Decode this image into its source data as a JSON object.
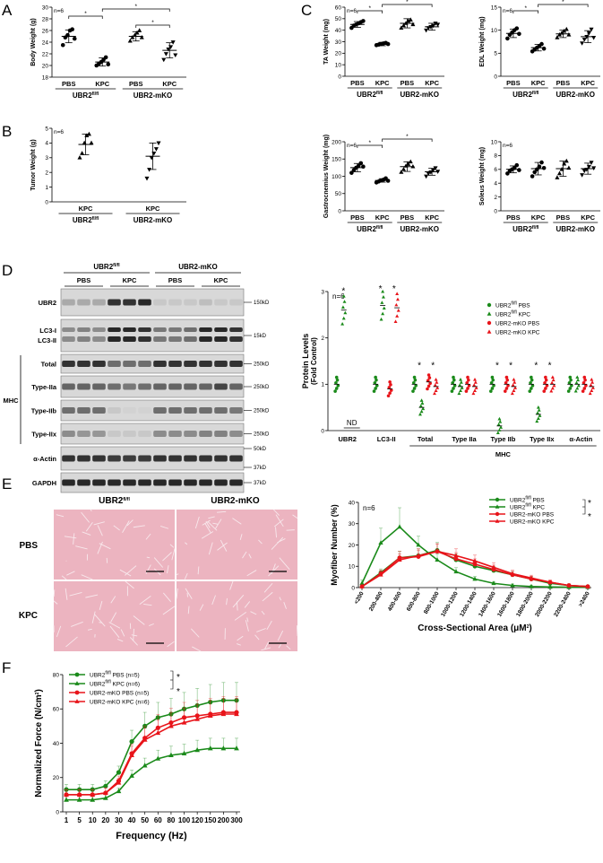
{
  "panels": {
    "A": {
      "letter": "A",
      "ylabel": "Body Weight (g)",
      "ylim": [
        18,
        30
      ],
      "yticks": [
        "18",
        "20",
        "22",
        "24",
        "26",
        "28",
        "30"
      ],
      "n_label": "n=6",
      "categories": [
        "PBS",
        "KPC",
        "PBS",
        "KPC"
      ],
      "groups": [
        {
          "label_main": "UBR2",
          "label_sup": "fl/fl"
        },
        {
          "label_main": "UBR2-mKO",
          "label_sup": ""
        }
      ],
      "means": [
        25.0,
        20.6,
        25.0,
        22.6
      ],
      "sd": [
        1.1,
        0.7,
        0.8,
        1.3
      ],
      "points": [
        [
          23.5,
          24.8,
          25.2,
          26.0,
          26.2,
          24.6
        ],
        [
          20.0,
          20.3,
          20.6,
          21.0,
          21.4,
          20.2
        ],
        [
          24.2,
          24.8,
          25.2,
          25.6,
          26.0,
          24.8
        ],
        [
          21.0,
          22.0,
          22.8,
          23.2,
          24.0,
          21.8
        ]
      ],
      "markers": [
        "circle",
        "circle",
        "triangle-up",
        "triangle-down"
      ],
      "sig": [
        "*",
        "*",
        "*"
      ]
    },
    "B": {
      "letter": "B",
      "ylabel": "Tumor Weight (g)",
      "ylim": [
        0,
        5
      ],
      "yticks": [
        "0",
        "1",
        "2",
        "3",
        "4",
        "5"
      ],
      "n_label": "n=6",
      "categories": [
        "KPC",
        "KPC"
      ],
      "groups": [
        {
          "label_main": "UBR2",
          "label_sup": "fl/fl"
        },
        {
          "label_main": "UBR2-mKO",
          "label_sup": ""
        }
      ],
      "means": [
        3.9,
        3.1
      ],
      "sd": [
        0.7,
        0.9
      ],
      "points": [
        [
          3.0,
          3.3,
          4.0,
          4.5,
          4.6,
          4.0
        ],
        [
          1.6,
          2.2,
          3.0,
          3.3,
          3.6,
          4.0
        ]
      ],
      "markers": [
        "triangle-up",
        "triangle-down"
      ]
    },
    "C": {
      "letter": "C",
      "categories": [
        "PBS",
        "KPC",
        "PBS",
        "KPC"
      ],
      "groups": [
        {
          "label_main": "UBR2",
          "label_sup": "fl/fl"
        },
        {
          "label_main": "UBR2-mKO",
          "label_sup": ""
        }
      ],
      "n_label": "n=6",
      "subplots": [
        {
          "ylabel": "TA Weight (mg)",
          "ylim": [
            0,
            60
          ],
          "yticks": [
            "0",
            "10",
            "20",
            "30",
            "40",
            "50",
            "60"
          ],
          "means": [
            45,
            28,
            46,
            43
          ],
          "sd": [
            2.5,
            1.5,
            4,
            3
          ],
          "points": [
            [
              42,
              44,
              45,
              46,
              47,
              48
            ],
            [
              27,
              27.5,
              28,
              28.5,
              29,
              28
            ],
            [
              42,
              44,
              46,
              48,
              49,
              45
            ],
            [
              40,
              42,
              43,
              44,
              46,
              45
            ]
          ],
          "sig": [
            "*",
            "*"
          ]
        },
        {
          "ylabel": "EDL Weight (mg)",
          "ylim": [
            0,
            15
          ],
          "yticks": [
            "0",
            "5",
            "10",
            "15"
          ],
          "means": [
            9.3,
            6.2,
            9.2,
            8.6
          ],
          "sd": [
            0.9,
            0.7,
            0.8,
            1.3
          ],
          "points": [
            [
              8.2,
              9,
              9.5,
              10,
              10.4,
              9.2
            ],
            [
              5.4,
              5.8,
              6.2,
              6.6,
              7,
              6
            ],
            [
              8.4,
              9,
              9.4,
              9.8,
              10.2,
              9
            ],
            [
              7.2,
              8,
              8.6,
              9.4,
              10.2,
              8.4
            ]
          ],
          "sig": [
            "*",
            "*"
          ]
        },
        {
          "ylabel": "Gastrocnemius Weight (mg)",
          "ylim": [
            0,
            200
          ],
          "yticks": [
            "0",
            "50",
            "100",
            "150",
            "200"
          ],
          "means": [
            125,
            88,
            128,
            113
          ],
          "sd": [
            12,
            5,
            14,
            10
          ],
          "points": [
            [
              110,
              118,
              125,
              130,
              138,
              128
            ],
            [
              82,
              85,
              88,
              90,
              94,
              87
            ],
            [
              112,
              120,
              130,
              135,
              142,
              128
            ],
            [
              100,
              108,
              112,
              118,
              124,
              114
            ]
          ],
          "sig": [
            "*",
            "*"
          ]
        },
        {
          "ylabel": "Soleus Weight (mg)",
          "ylim": [
            0,
            10
          ],
          "yticks": [
            "0",
            "2",
            "4",
            "6",
            "8",
            "10"
          ],
          "means": [
            6.0,
            6.1,
            6.1,
            6.1
          ],
          "sd": [
            0.5,
            0.9,
            1.1,
            0.8
          ],
          "points": [
            [
              5.4,
              5.8,
              6.0,
              6.2,
              6.6,
              5.9
            ],
            [
              5.0,
              5.6,
              6.0,
              6.4,
              7.0,
              6.2
            ],
            [
              4.8,
              5.4,
              6.0,
              6.8,
              7.2,
              6.2
            ],
            [
              5.2,
              5.8,
              6.0,
              6.4,
              7.0,
              6.2
            ]
          ],
          "sig": []
        }
      ]
    },
    "D": {
      "letter": "D",
      "blot": {
        "groups": [
          {
            "label_main": "UBR2",
            "label_sup": "fl/fl"
          },
          {
            "label_main": "UBR2-mKO",
            "label_sup": ""
          }
        ],
        "conditions": [
          "PBS",
          "KPC",
          "PBS",
          "KPC"
        ],
        "rows": [
          {
            "label": "UBR2",
            "kd": "150kD"
          },
          {
            "label": "LC3-I",
            "label2": "LC3-II",
            "kd": "15kD"
          },
          {
            "label": "Total",
            "kd": "250kD"
          },
          {
            "label": "Type-IIa",
            "kd": "250kD"
          },
          {
            "label": "Type-IIb",
            "kd": "250kD"
          },
          {
            "label": "Type-IIx",
            "kd": "250kD"
          },
          {
            "label": "α-Actin",
            "kd": "50kD",
            "kd2": "37kD"
          },
          {
            "label": "GAPDH",
            "kd": "37kD"
          }
        ],
        "mhc_label": "MHC"
      },
      "chart_data": {
        "type": "scatter",
        "ylabel": "Protein Levels",
        "ylabel2": "(Fold Control)",
        "ylim": [
          0,
          3
        ],
        "yticks": [
          "0",
          "1",
          "2",
          "3"
        ],
        "n_label": "n=6",
        "categories": [
          "UBR2",
          "LC3-II",
          "Total",
          "Type IIa",
          "Type IIb",
          "Type IIx",
          "α-Actin"
        ],
        "mhc_label": "MHC",
        "nd_label": "ND",
        "series": [
          {
            "name": "UBR2 fl/fl PBS",
            "name_main": "UBR2",
            "name_sup": "fl/fl",
            "name_rest": " PBS",
            "color": "#1a8a1a",
            "marker": "circle",
            "values": [
              1.0,
              1.0,
              1.0,
              1.0,
              1.0,
              1.0,
              1.0
            ]
          },
          {
            "name": "UBR2 fl/fl KPC",
            "name_main": "UBR2",
            "name_sup": "fl/fl",
            "name_rest": " KPC",
            "color": "#1a8a1a",
            "marker": "triangle",
            "values": [
              2.6,
              2.7,
              0.5,
              0.95,
              0.1,
              0.35,
              1.0
            ]
          },
          {
            "name": "UBR2-mKO PBS",
            "name_main": "UBR2-mKO PBS",
            "name_sup": "",
            "name_rest": "",
            "color": "#e8141a",
            "marker": "circle",
            "values": [
              null,
              0.9,
              1.05,
              1.0,
              1.0,
              1.0,
              1.0
            ]
          },
          {
            "name": "UBR2-mKO KPC",
            "name_main": "UBR2-mKO KPC",
            "name_sup": "",
            "name_rest": "",
            "color": "#e8141a",
            "marker": "triangle",
            "values": [
              null,
              2.65,
              0.95,
              0.95,
              0.95,
              1.0,
              0.95
            ]
          }
        ],
        "sig": [
          "*",
          "*",
          "*",
          "*",
          "*",
          "*",
          "*",
          "*",
          "*"
        ]
      }
    },
    "E": {
      "letter": "E",
      "histo": {
        "cols": [
          {
            "label_main": "UBR2",
            "label_sup": "fl/fl"
          },
          {
            "label_main": "UBR2-mKO",
            "label_sup": ""
          }
        ],
        "rows": [
          "PBS",
          "KPC"
        ]
      },
      "chart_data": {
        "type": "line",
        "xlabel": "Cross-Sectional Area (μM²)",
        "xlabel_main": "Cross-Sectional Area (μM",
        "xlabel_sup": "2",
        "xlabel_end": ")",
        "ylabel": "Myofiber Number (%)",
        "ylim": [
          0,
          40
        ],
        "yticks": [
          "0",
          "10",
          "20",
          "30",
          "40"
        ],
        "n_label": "n=6",
        "categories": [
          "<200",
          "200-400",
          "400-600",
          "600-800",
          "800-1000",
          "1000-1200",
          "1200-1400",
          "1400-1600",
          "1600-1800",
          "1800-2000",
          "2000-2200",
          "2200-2400",
          ">2400"
        ],
        "series": [
          {
            "name": "UBR2 fl/fl PBS",
            "name_main": "UBR2",
            "name_sup": "fl/fl",
            "name_rest": " PBS",
            "color": "#1a8a1a",
            "marker": "circle",
            "values": [
              0.5,
              7,
              14,
              15,
              17.5,
              13,
              10,
              8,
              6,
              4,
              2,
              1,
              0.5
            ]
          },
          {
            "name": "UBR2 fl/fl KPC",
            "name_main": "UBR2",
            "name_sup": "fl/fl",
            "name_rest": " KPC",
            "color": "#1a8a1a",
            "marker": "triangle",
            "values": [
              2,
              21,
              28.5,
              20,
              13,
              7.5,
              4,
              2,
              1,
              0.5,
              0.3,
              0.2,
              0.2
            ]
          },
          {
            "name": "UBR2-mKO PBS",
            "name_main": "UBR2-mKO PBS",
            "name_sup": "",
            "name_rest": "",
            "color": "#e8141a",
            "marker": "circle",
            "values": [
              0.5,
              6.5,
              14,
              14.5,
              17,
              13.5,
              11,
              8.5,
              6,
              4,
              2.5,
              1,
              0.5
            ]
          },
          {
            "name": "UBR2-mKO KPC",
            "name_main": "UBR2-mKO KPC",
            "name_sup": "",
            "name_rest": "",
            "color": "#e8141a",
            "marker": "triangle",
            "values": [
              0.5,
              6,
              13,
              15,
              17,
              15,
              12.5,
              9.5,
              6.5,
              4.5,
              2.5,
              1,
              0.5
            ]
          }
        ],
        "sig": [
          "*",
          "*"
        ]
      }
    },
    "F": {
      "letter": "F",
      "chart_data": {
        "type": "line",
        "xlabel": "Frequency (Hz)",
        "ylabel": "Normalized Force (N/cm²)",
        "ylabel_main": "Normalized Force (N/cm",
        "ylabel_sup": "2",
        "ylabel_end": ")",
        "ylim": [
          0,
          80
        ],
        "yticks": [
          "0",
          "20",
          "40",
          "60",
          "80"
        ],
        "categories": [
          "1",
          "5",
          "10",
          "20",
          "30",
          "40",
          "50",
          "60",
          "80",
          "100",
          "120",
          "150",
          "200",
          "300"
        ],
        "series": [
          {
            "name": "UBR2 fl/fl PBS (n=5)",
            "name_main": "UBR2",
            "name_sup": "fl/fl",
            "name_rest": " PBS (n=5)",
            "color": "#1a8a1a",
            "marker": "circle",
            "values": [
              13,
              13,
              13,
              15,
              23,
              41,
              50,
              55,
              57,
              60,
              62,
              64,
              65,
              65
            ]
          },
          {
            "name": "UBR2 fl/fl KPC (n=6)",
            "name_main": "UBR2",
            "name_sup": "fl/fl",
            "name_rest": " KPC (n=6)",
            "color": "#1a8a1a",
            "marker": "triangle",
            "values": [
              7,
              7,
              7,
              8,
              12,
              21,
              27,
              31,
              33,
              34,
              36,
              37,
              37,
              37
            ]
          },
          {
            "name": "UBR2-mKO PBS (n=5)",
            "name_main": "UBR2-mKO PBS (n=5)",
            "name_sup": "",
            "name_rest": "",
            "color": "#e8141a",
            "marker": "circle",
            "values": [
              10,
              10,
              10,
              11,
              18,
              34,
              43,
              49,
              52,
              55,
              56,
              57,
              58,
              58
            ]
          },
          {
            "name": "UBR2-mKO KPC (n=6)",
            "name_main": "UBR2-mKO KPC (n=6)",
            "name_sup": "",
            "name_rest": "",
            "color": "#e8141a",
            "marker": "triangle",
            "values": [
              10,
              10,
              10,
              11,
              17,
              33,
              42,
              46,
              50,
              52,
              54,
              56,
              57,
              57
            ]
          }
        ],
        "sig": [
          "*",
          "*"
        ]
      }
    }
  }
}
